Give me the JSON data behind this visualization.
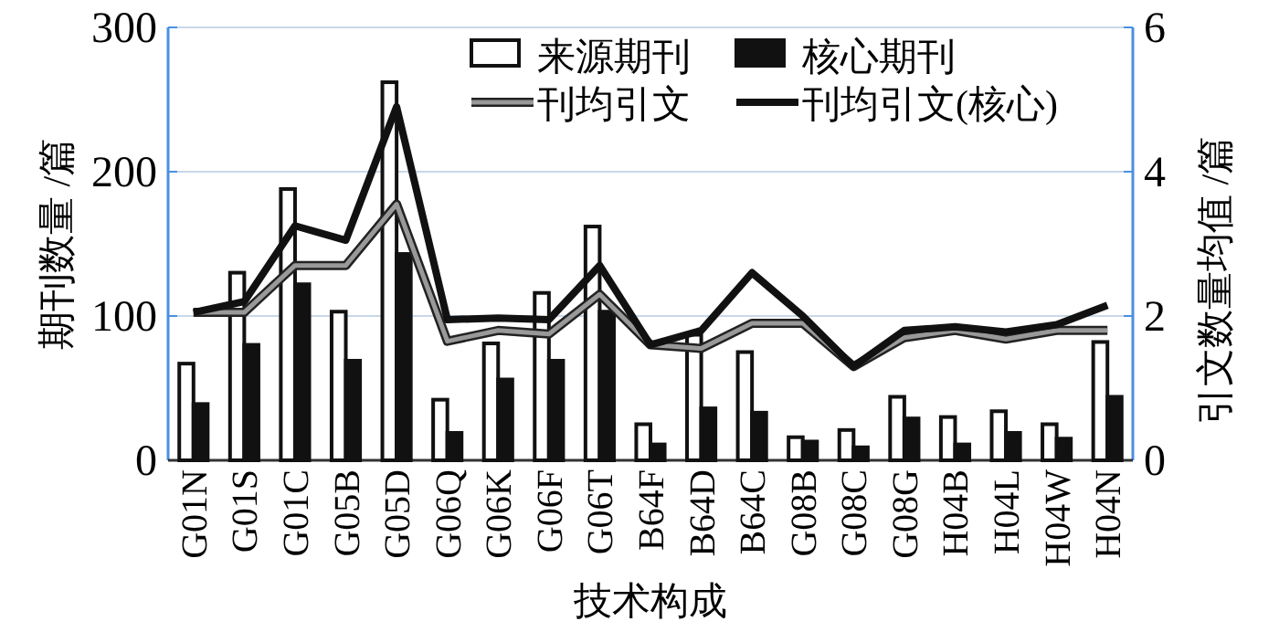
{
  "chart_data": {
    "type": "bar",
    "xlabel": "技术构成",
    "ylabel": "期刊数量 /篇",
    "y2label": "引文数量均值 /篇",
    "categories": [
      "G01N",
      "G01S",
      "G01C",
      "G05B",
      "G05D",
      "G06Q",
      "G06K",
      "G06F",
      "G06T",
      "B64F",
      "B64D",
      "B64C",
      "G08B",
      "G08C",
      "G08G",
      "H04B",
      "H04L",
      "H04W",
      "H04N"
    ],
    "series": [
      {
        "name": "来源期刊",
        "color": "#ffffff",
        "values": [
          67,
          130,
          188,
          103,
          262,
          42,
          81,
          116,
          162,
          25,
          87,
          75,
          16,
          21,
          44,
          30,
          34,
          25,
          82
        ]
      },
      {
        "name": "核心期刊",
        "color": "#111111",
        "values": [
          39,
          80,
          122,
          69,
          143,
          19,
          56,
          69,
          103,
          11,
          36,
          33,
          13,
          9,
          29,
          11,
          19,
          15,
          44
        ]
      },
      {
        "name": "刊均引文",
        "type": "line",
        "axis": "y2",
        "color": "#999999",
        "values": [
          2.05,
          2.05,
          2.7,
          2.7,
          3.55,
          1.65,
          1.8,
          1.75,
          2.3,
          1.6,
          1.55,
          1.9,
          1.9,
          1.3,
          1.7,
          1.8,
          1.68,
          1.8,
          1.8
        ]
      },
      {
        "name": "刊均引文(核心)",
        "type": "line",
        "axis": "y2",
        "color": "#111111",
        "values": [
          2.05,
          2.2,
          3.25,
          3.05,
          4.9,
          1.95,
          1.97,
          1.95,
          2.7,
          1.6,
          1.8,
          2.6,
          2.0,
          1.3,
          1.8,
          1.85,
          1.78,
          1.88,
          2.15
        ]
      }
    ],
    "ylim": [
      0,
      300
    ],
    "yticks": [
      0,
      100,
      200,
      300
    ],
    "y2lim": [
      0,
      6
    ],
    "y2ticks": [
      0,
      2,
      4,
      6
    ],
    "grid": "y",
    "legend": "top right"
  }
}
